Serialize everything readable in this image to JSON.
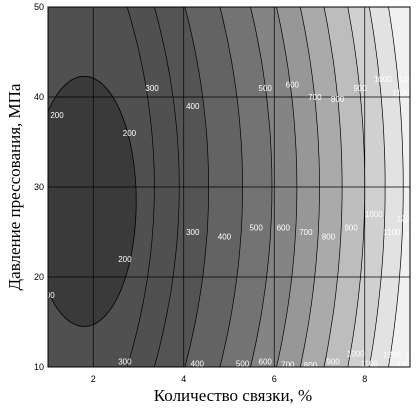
{
  "chart_data": {
    "type": "contour",
    "title": "",
    "xlabel": "Количество связки, %",
    "ylabel": "Давление прессования, МПа",
    "xlim": [
      1,
      9
    ],
    "ylim": [
      10,
      50
    ],
    "xticks": [
      2,
      4,
      6,
      8
    ],
    "yticks": [
      10,
      20,
      30,
      40,
      50
    ],
    "grid": true,
    "contour_levels": [
      200,
      300,
      400,
      500,
      600,
      700,
      800,
      900,
      1000,
      1100,
      1200,
      1300
    ],
    "levels_shown": [
      "200",
      "300",
      "400",
      "500",
      "600",
      "700",
      "800",
      "900",
      "1000",
      "1100",
      "1200",
      "1300",
      "1200",
      "1300"
    ],
    "contour_labels": [
      {
        "text": "200",
        "x": 1.2,
        "y": 38
      },
      {
        "text": "200",
        "x": 2.8,
        "y": 36
      },
      {
        "text": "200",
        "x": 2.7,
        "y": 22
      },
      {
        "text": "00",
        "x": 1.05,
        "y": 18
      },
      {
        "text": "300",
        "x": 3.3,
        "y": 41
      },
      {
        "text": "300",
        "x": 4.2,
        "y": 25
      },
      {
        "text": "300",
        "x": 2.7,
        "y": 10.6
      },
      {
        "text": "400",
        "x": 4.2,
        "y": 39
      },
      {
        "text": "400",
        "x": 4.9,
        "y": 24.5
      },
      {
        "text": "400",
        "x": 4.3,
        "y": 10.4
      },
      {
        "text": "500",
        "x": 5.8,
        "y": 41
      },
      {
        "text": "500",
        "x": 5.6,
        "y": 25.5
      },
      {
        "text": "500",
        "x": 5.3,
        "y": 10.4
      },
      {
        "text": "600",
        "x": 6.4,
        "y": 41.4
      },
      {
        "text": "600",
        "x": 6.2,
        "y": 25.5
      },
      {
        "text": "600",
        "x": 5.8,
        "y": 10.6
      },
      {
        "text": "700",
        "x": 6.9,
        "y": 40
      },
      {
        "text": "700",
        "x": 6.7,
        "y": 25
      },
      {
        "text": "700",
        "x": 6.3,
        "y": 10.3
      },
      {
        "text": "800",
        "x": 7.4,
        "y": 39.8
      },
      {
        "text": "800",
        "x": 7.2,
        "y": 24.5
      },
      {
        "text": "800",
        "x": 6.8,
        "y": 10.2
      },
      {
        "text": "900",
        "x": 7.9,
        "y": 41
      },
      {
        "text": "900",
        "x": 7.7,
        "y": 25.5
      },
      {
        "text": "900",
        "x": 7.3,
        "y": 10.6
      },
      {
        "text": "1000",
        "x": 8.4,
        "y": 42
      },
      {
        "text": "1000",
        "x": 8.2,
        "y": 27
      },
      {
        "text": "1000",
        "x": 7.8,
        "y": 11.5
      },
      {
        "text": "1100",
        "x": 8.8,
        "y": 40.5
      },
      {
        "text": "1100",
        "x": 8.6,
        "y": 25
      },
      {
        "text": "1100",
        "x": 8.1,
        "y": 10.4
      },
      {
        "text": "1200",
        "x": 8.9,
        "y": 26.5
      },
      {
        "text": "1200",
        "x": 8.6,
        "y": 11.4
      },
      {
        "text": "1300",
        "x": 8.95,
        "y": 42
      },
      {
        "text": "13",
        "x": 9.0,
        "y": 24.8
      },
      {
        "text": "1300",
        "x": 8.9,
        "y": 10.3
      },
      {
        "text": "13",
        "x": 9.0,
        "y": 11.3
      }
    ],
    "colors": {
      "darkest": "#3a3a3a",
      "lightest": "#f2f2f2",
      "line": "#000000"
    }
  }
}
